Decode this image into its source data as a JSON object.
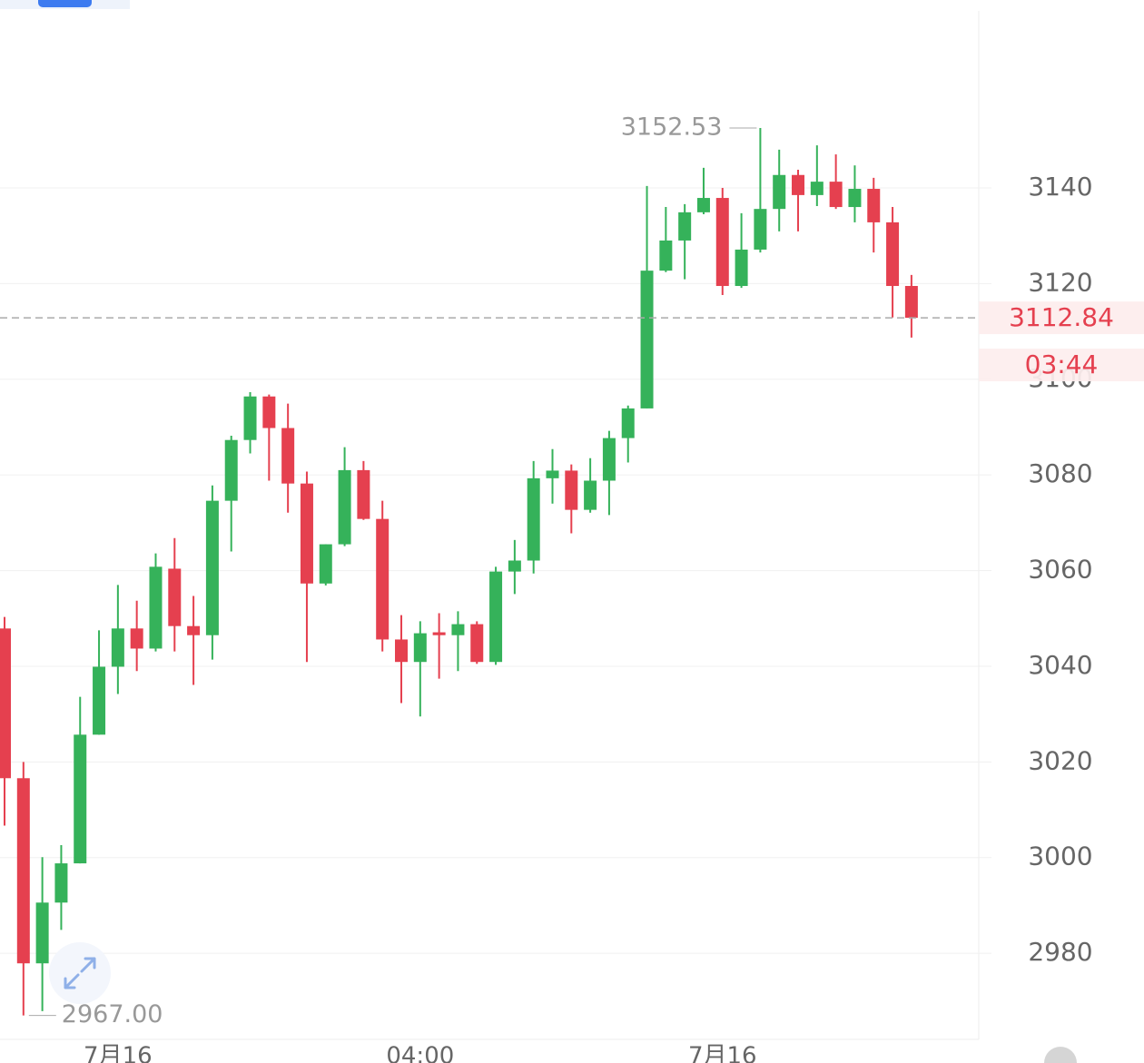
{
  "chart_data": {
    "type": "candlestick",
    "categories": [
      null,
      null,
      null,
      null,
      null,
      null,
      "7月16",
      null,
      null,
      null,
      null,
      null,
      null,
      null,
      null,
      null,
      null,
      null,
      null,
      null,
      null,
      null,
      "04:00",
      null,
      null,
      null,
      null,
      null,
      null,
      null,
      null,
      null,
      null,
      null,
      null,
      null,
      null,
      null,
      "7月16",
      null,
      null,
      null,
      null,
      null,
      null,
      null,
      null,
      null,
      null
    ],
    "open": [
      3047.9,
      3016.6,
      2977.9,
      2990.6,
      2998.8,
      3025.7,
      3039.9,
      3047.9,
      3043.7,
      3060.4,
      3048.4,
      3046.5,
      3074.6,
      3087.3,
      3096.4,
      3089.8,
      3078.2,
      3057.3,
      3065.5,
      3081.0,
      3070.8,
      3045.6,
      3040.9,
      3047.1,
      3046.5,
      3048.8,
      3040.9,
      3059.8,
      3062.1,
      3079.3,
      3080.9,
      3072.7,
      3078.8,
      3087.7,
      3093.9,
      3122.7,
      3129.0,
      3134.9,
      3137.9,
      3119.5,
      3127.1,
      3135.6,
      3142.7,
      3138.5,
      3141.3,
      3136.0,
      3139.8,
      3132.8,
      3119.5
    ],
    "high": [
      3050.3,
      3020.0,
      3000.1,
      3002.6,
      3033.6,
      3047.5,
      3057.0,
      3053.7,
      3063.6,
      3066.8,
      3054.7,
      3077.8,
      3088.2,
      3097.3,
      3096.8,
      3094.9,
      3080.7,
      3065.5,
      3085.8,
      3082.9,
      3074.6,
      3050.7,
      3049.4,
      3051.1,
      3051.5,
      3049.4,
      3060.8,
      3066.4,
      3082.9,
      3085.4,
      3082.2,
      3083.5,
      3089.2,
      3094.5,
      3140.4,
      3136.0,
      3136.6,
      3144.2,
      3140.0,
      3134.7,
      3152.53,
      3148.0,
      3143.8,
      3148.9,
      3147.0,
      3144.7,
      3142.1,
      3136.0,
      3121.8
    ],
    "low": [
      3006.7,
      2967,
      2967.9,
      2984.9,
      2998.8,
      3025.7,
      3034.2,
      3039.0,
      3043.1,
      3043.1,
      3036.1,
      3041.4,
      3064.0,
      3084.5,
      3078.8,
      3072.1,
      3040.9,
      3056.9,
      3065.1,
      3070.6,
      3043.1,
      3032.3,
      3029.5,
      3037.4,
      3039.0,
      3040.5,
      3040.3,
      3055.1,
      3059.4,
      3074.0,
      3067.8,
      3072.1,
      3071.6,
      3082.6,
      3093.9,
      3122.4,
      3120.9,
      3134.5,
      3117.6,
      3119.1,
      3126.5,
      3130.9,
      3130.9,
      3136.2,
      3135.6,
      3132.8,
      3126.5,
      3112.9,
      3108.7
    ],
    "close": [
      3016.6,
      2977.9,
      2990.6,
      2998.8,
      3025.7,
      3039.9,
      3047.9,
      3043.7,
      3060.8,
      3048.4,
      3046.5,
      3074.6,
      3087.3,
      3096.4,
      3089.8,
      3078.2,
      3057.3,
      3065.5,
      3081.0,
      3070.8,
      3045.6,
      3040.9,
      3046.9,
      3046.5,
      3048.8,
      3040.9,
      3059.8,
      3062.1,
      3079.3,
      3080.9,
      3072.7,
      3078.8,
      3087.7,
      3093.9,
      3122.7,
      3129.0,
      3134.9,
      3137.9,
      3119.5,
      3127.1,
      3135.6,
      3142.7,
      3138.5,
      3141.3,
      3136.0,
      3139.8,
      3132.8,
      3119.5,
      3112.84
    ],
    "up_color": "#35b25a",
    "down_color": "#e5404f",
    "ylim": [
      2962,
      3177
    ],
    "yticks": [
      2980,
      3000,
      3020,
      3040,
      3060,
      3080,
      3100,
      3120,
      3140
    ],
    "grid": true,
    "last_price": 3112.84,
    "countdown": "03:44",
    "max_label": 3152.53,
    "min_label": {
      "value": 2967,
      "label": "2967.00"
    }
  }
}
